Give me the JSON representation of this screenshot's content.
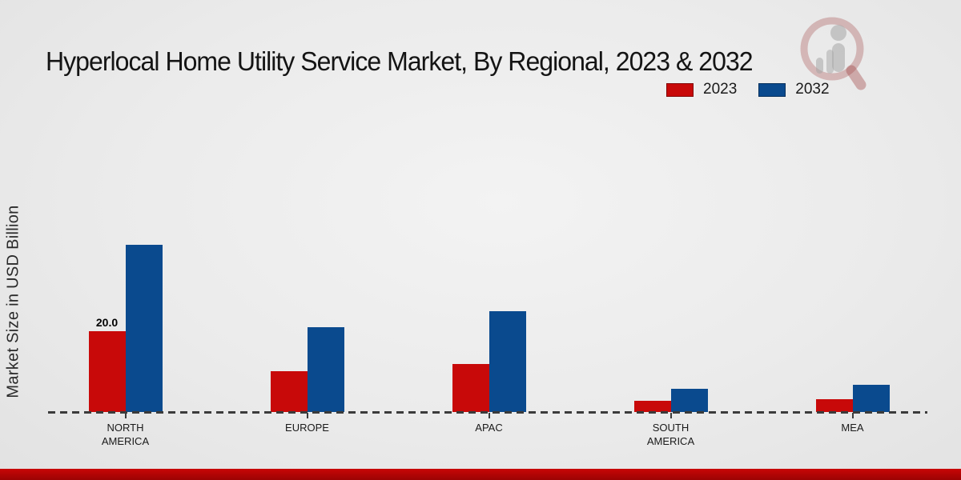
{
  "title": "Hyperlocal Home Utility Service Market, By Regional, 2023 & 2032",
  "chart_data": {
    "type": "bar",
    "title": "Hyperlocal Home Utility Service Market, By Regional, 2023 & 2032",
    "ylabel": "Market Size in USD Billion",
    "xlabel": "",
    "categories": [
      "NORTH AMERICA",
      "EUROPE",
      "APAC",
      "SOUTH AMERICA",
      "MEA"
    ],
    "series": [
      {
        "name": "2023",
        "color": "#c80909",
        "values": [
          20.0,
          10.0,
          11.8,
          2.7,
          3.1
        ]
      },
      {
        "name": "2032",
        "color": "#0a4a8e",
        "values": [
          41.4,
          21.0,
          25.0,
          5.8,
          6.8
        ]
      }
    ],
    "ylim": [
      0,
      45
    ],
    "grid": false,
    "y_tick_labels_visible": false,
    "legend_position": "top-right",
    "baseline_style": "dashed",
    "annotations": [
      {
        "series": "2023",
        "category": "NORTH AMERICA",
        "text": "20.0"
      }
    ]
  },
  "watermark": {
    "icon": "magnifier-analytics-logo"
  },
  "colors": {
    "footer_bar": "#c00000",
    "background": "#ececec",
    "baseline": "#3b3b3b"
  }
}
